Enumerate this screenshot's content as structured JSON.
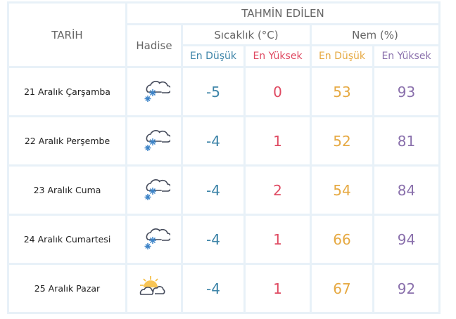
{
  "header": {
    "date": "TARİH",
    "forecast": "TAHMİN EDİLEN",
    "event": "Hadise",
    "temperature": "Sıcaklık (°C)",
    "humidity": "Nem (%)",
    "temp_min": "En Düşük",
    "temp_max": "En Yüksek",
    "hum_min": "En Düşük",
    "hum_max": "En Yüksek"
  },
  "colors": {
    "min_temp": "#3d84a8",
    "max_temp": "#df4a62",
    "min_hum": "#e6a942",
    "max_hum": "#8a70ac",
    "grid": "#e8f1f8"
  },
  "rows": [
    {
      "date": "21 Aralık Çarşamba",
      "icon": "snow-cloud-icon",
      "temp_min": "-5",
      "temp_max": "0",
      "hum_min": "53",
      "hum_max": "93"
    },
    {
      "date": "22 Aralık Perşembe",
      "icon": "snow-cloud-icon",
      "temp_min": "-4",
      "temp_max": "1",
      "hum_min": "52",
      "hum_max": "81"
    },
    {
      "date": "23 Aralık Cuma",
      "icon": "snow-cloud-icon",
      "temp_min": "-4",
      "temp_max": "2",
      "hum_min": "54",
      "hum_max": "84"
    },
    {
      "date": "24 Aralık Cumartesi",
      "icon": "snow-cloud-icon",
      "temp_min": "-4",
      "temp_max": "1",
      "hum_min": "66",
      "hum_max": "94"
    },
    {
      "date": "25 Aralık Pazar",
      "icon": "partly-cloudy-icon",
      "temp_min": "-4",
      "temp_max": "1",
      "hum_min": "67",
      "hum_max": "92"
    }
  ]
}
